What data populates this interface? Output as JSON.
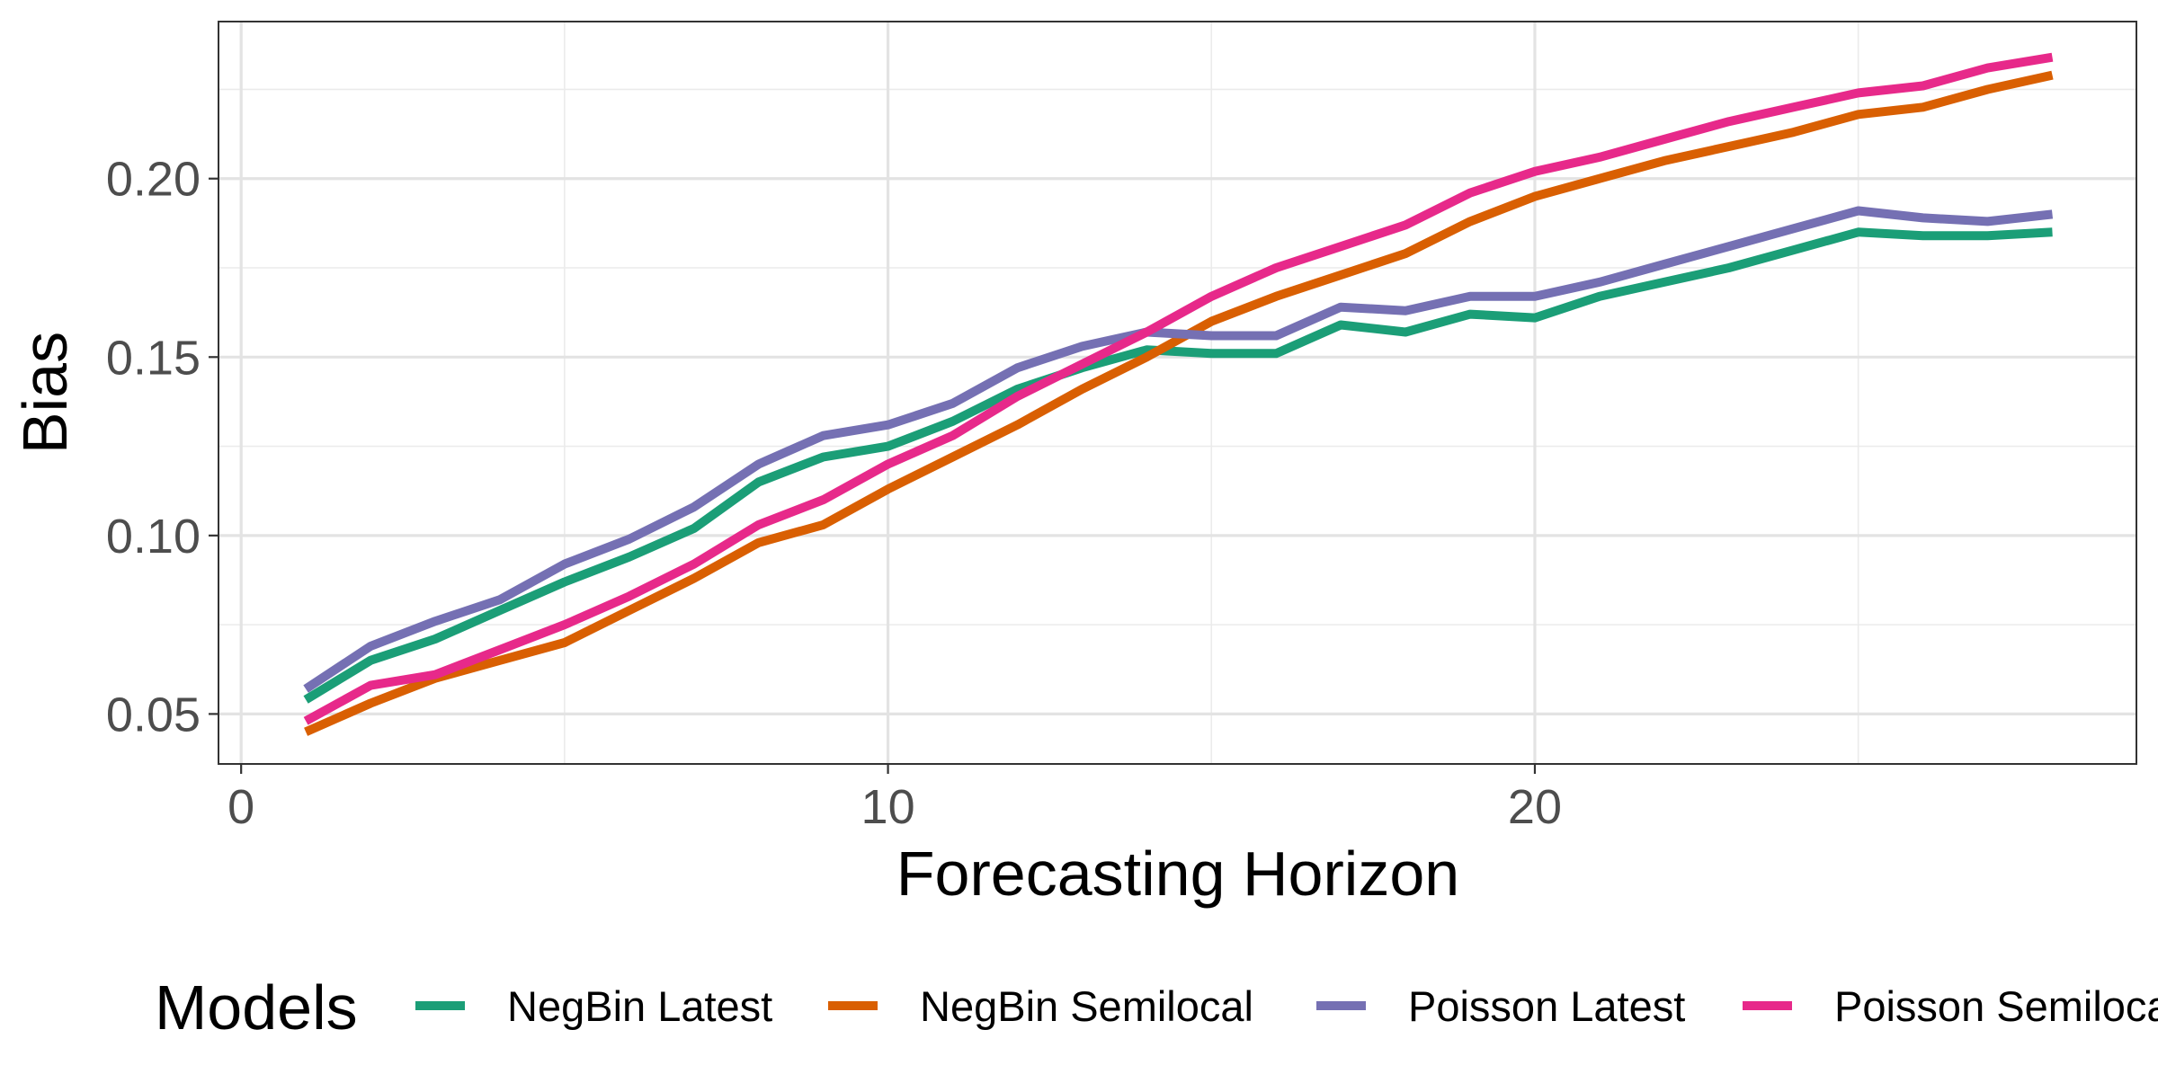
{
  "chart_data": {
    "type": "line",
    "title": "",
    "xlabel": "Forecasting Horizon",
    "ylabel": "Bias",
    "xlim": [
      -0.35,
      29.3
    ],
    "ylim": [
      0.036,
      0.244
    ],
    "xticks": [
      0,
      10,
      20
    ],
    "xtick_labels": [
      "0",
      "10",
      "20"
    ],
    "yticks": [
      0.05,
      0.1,
      0.15,
      0.2
    ],
    "ytick_labels": [
      "0.05",
      "0.10",
      "0.15",
      "0.20"
    ],
    "grid": true,
    "legend": {
      "title": "Models",
      "position": "bottom"
    },
    "x": [
      1,
      2,
      3,
      4,
      5,
      6,
      7,
      8,
      9,
      10,
      11,
      12,
      13,
      14,
      15,
      16,
      17,
      18,
      19,
      20,
      21,
      22,
      23,
      24,
      25,
      26,
      27,
      28
    ],
    "series": [
      {
        "name": "NegBin Latest",
        "color": "#1b9e77",
        "values": [
          0.054,
          0.065,
          0.071,
          0.079,
          0.087,
          0.094,
          0.102,
          0.115,
          0.122,
          0.125,
          0.132,
          0.141,
          0.147,
          0.152,
          0.151,
          0.151,
          0.159,
          0.157,
          0.162,
          0.161,
          0.167,
          0.171,
          0.175,
          0.18,
          0.185,
          0.184,
          0.184,
          0.185
        ]
      },
      {
        "name": "NegBin Semilocal",
        "color": "#d95f02",
        "values": [
          0.045,
          0.053,
          0.06,
          0.065,
          0.07,
          0.079,
          0.088,
          0.098,
          0.103,
          0.113,
          0.122,
          0.131,
          0.141,
          0.15,
          0.16,
          0.167,
          0.173,
          0.179,
          0.188,
          0.195,
          0.2,
          0.205,
          0.209,
          0.213,
          0.218,
          0.22,
          0.225,
          0.229
        ]
      },
      {
        "name": "Poisson Latest",
        "color": "#7570b3",
        "values": [
          0.057,
          0.069,
          0.076,
          0.082,
          0.092,
          0.099,
          0.108,
          0.12,
          0.128,
          0.131,
          0.137,
          0.147,
          0.153,
          0.157,
          0.156,
          0.156,
          0.164,
          0.163,
          0.167,
          0.167,
          0.171,
          0.176,
          0.181,
          0.186,
          0.191,
          0.189,
          0.188,
          0.19
        ]
      },
      {
        "name": "Poisson Semilocal",
        "color": "#e7298a",
        "values": [
          0.048,
          0.058,
          0.061,
          0.068,
          0.075,
          0.083,
          0.092,
          0.103,
          0.11,
          0.12,
          0.128,
          0.139,
          0.148,
          0.157,
          0.167,
          0.175,
          0.181,
          0.187,
          0.196,
          0.202,
          0.206,
          0.211,
          0.216,
          0.22,
          0.224,
          0.226,
          0.231,
          0.234
        ]
      }
    ]
  }
}
